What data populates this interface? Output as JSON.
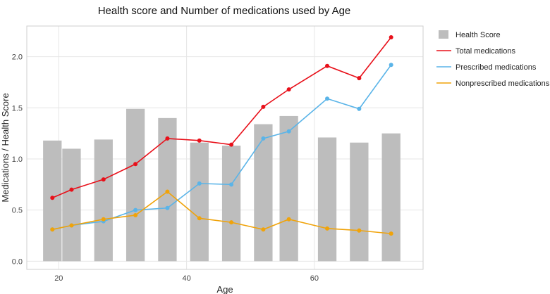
{
  "chart_data": {
    "type": "bar+line",
    "title": "Health score and Number of medications used by Age",
    "xlabel": "Age",
    "ylabel": "Medications / Health Score",
    "xlim": [
      15,
      77
    ],
    "ylim": [
      -0.08,
      2.3
    ],
    "xticks": [
      20,
      40,
      60
    ],
    "yticks": [
      0.0,
      0.5,
      1.0,
      1.5,
      2.0
    ],
    "ytick_labels": [
      "0.0",
      "0.5",
      "1.0",
      "1.5",
      "2.0"
    ],
    "grid": true,
    "legend_position": "right",
    "x": [
      19,
      22,
      27,
      32,
      37,
      42,
      47,
      52,
      56,
      62,
      67,
      72
    ],
    "series": [
      {
        "name": "Health Score",
        "kind": "bar",
        "color": "#bdbdbd",
        "values": [
          1.18,
          1.1,
          1.19,
          1.49,
          1.4,
          1.16,
          1.13,
          1.34,
          1.42,
          1.21,
          1.16,
          1.25
        ]
      },
      {
        "name": "Total medications",
        "kind": "line",
        "color": "#e8101a",
        "values": [
          0.62,
          0.7,
          0.8,
          0.95,
          1.2,
          1.18,
          1.14,
          1.51,
          1.68,
          1.91,
          1.79,
          2.19
        ]
      },
      {
        "name": "Prescribed medications",
        "kind": "line",
        "color": "#5ab4e8",
        "values": [
          0.31,
          0.35,
          0.39,
          0.5,
          0.52,
          0.76,
          0.75,
          1.2,
          1.27,
          1.59,
          1.49,
          1.92
        ]
      },
      {
        "name": "Nonprescribed medications",
        "kind": "line",
        "color": "#f0a30a",
        "values": [
          0.31,
          0.35,
          0.41,
          0.45,
          0.68,
          0.42,
          0.38,
          0.31,
          0.41,
          0.32,
          0.3,
          0.27
        ]
      }
    ]
  }
}
